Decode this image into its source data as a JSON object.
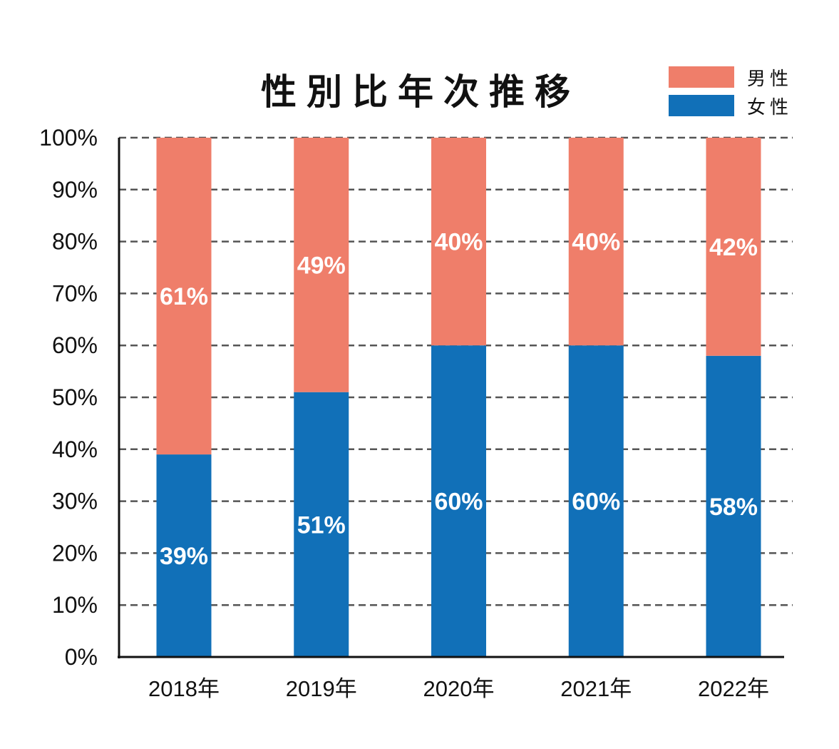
{
  "chart_data": {
    "type": "bar",
    "stacked": true,
    "title": "性別比年次推移",
    "categories": [
      "2018年",
      "2019年",
      "2020年",
      "2021年",
      "2022年"
    ],
    "series": [
      {
        "name": "女性",
        "values": [
          39,
          51,
          60,
          60,
          58
        ],
        "labels": [
          "39%",
          "51%",
          "60%",
          "60%",
          "58%"
        ],
        "color": "#1170b8"
      },
      {
        "name": "男性",
        "values": [
          61,
          49,
          40,
          40,
          42
        ],
        "labels": [
          "61%",
          "49%",
          "40%",
          "40%",
          "42%"
        ],
        "color": "#ef7e6a"
      }
    ],
    "yticks": [
      "0%",
      "10%",
      "20%",
      "30%",
      "40%",
      "50%",
      "60%",
      "70%",
      "80%",
      "90%",
      "100%"
    ],
    "ylim": [
      0,
      100
    ],
    "grid": true,
    "legend": "top-right",
    "legend_order": [
      "男性",
      "女性"
    ]
  }
}
